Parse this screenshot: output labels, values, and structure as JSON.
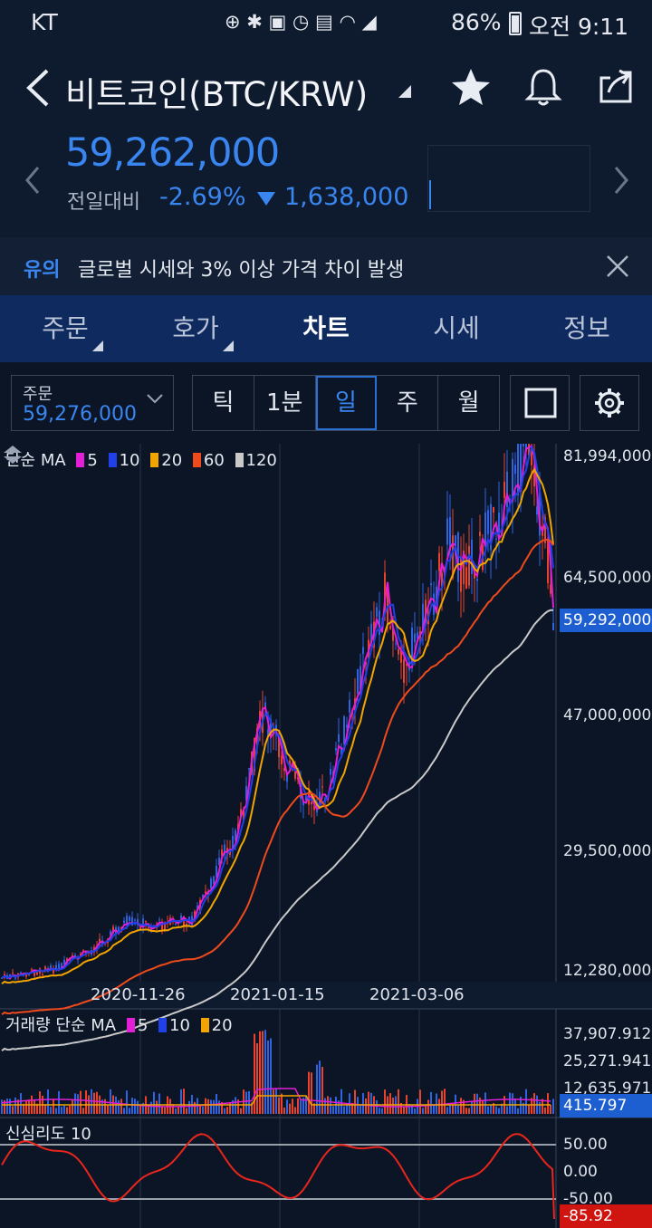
{
  "status": {
    "carrier": "KT",
    "battery": "86%",
    "time": "오전 9:11"
  },
  "header": {
    "title": "비트코인(BTC/KRW)",
    "price": "59,262,000",
    "change_label": "전일대비",
    "change_pct": "-2.69%",
    "change_value": "1,638,000"
  },
  "notice": {
    "tag": "유의",
    "message": "글로벌 시세와 3% 이상 가격 차이 발생"
  },
  "tabs": [
    {
      "label": "주문"
    },
    {
      "label": "호가"
    },
    {
      "label": "차트"
    },
    {
      "label": "시세"
    },
    {
      "label": "정보"
    }
  ],
  "toolbar": {
    "order_label": "주문",
    "order_value": "59,276,000",
    "periods": [
      "틱",
      "1분",
      "일",
      "주",
      "월"
    ],
    "active_period": "일"
  },
  "chart": {
    "ma_legend": {
      "label": "단순 MA",
      "items": [
        "5",
        "10",
        "20",
        "60",
        "120"
      ],
      "colors": [
        "#e21ed6",
        "#2040e8",
        "#f2a400",
        "#f04a1c",
        "#c9c9c9"
      ]
    },
    "y_labels": [
      "81,994,000",
      "64,500,000",
      "47,000,000",
      "29,500,000",
      "12,280,000"
    ],
    "current_badge": "59,292,000",
    "x_labels": [
      "2020-11-26",
      "2021-01-15",
      "2021-03-06"
    ],
    "volume_legend": {
      "label": "거래량 단순 MA",
      "items": [
        "5",
        "10",
        "20"
      ]
    },
    "volume_labels": [
      "37,907.912",
      "25,271.941",
      "12,635.971"
    ],
    "volume_badge": "415.797",
    "psy_legend": "신심리도 10",
    "psy_labels": [
      "50.00",
      "0.00",
      "-50.00"
    ],
    "psy_badge": "-85.92"
  }
}
